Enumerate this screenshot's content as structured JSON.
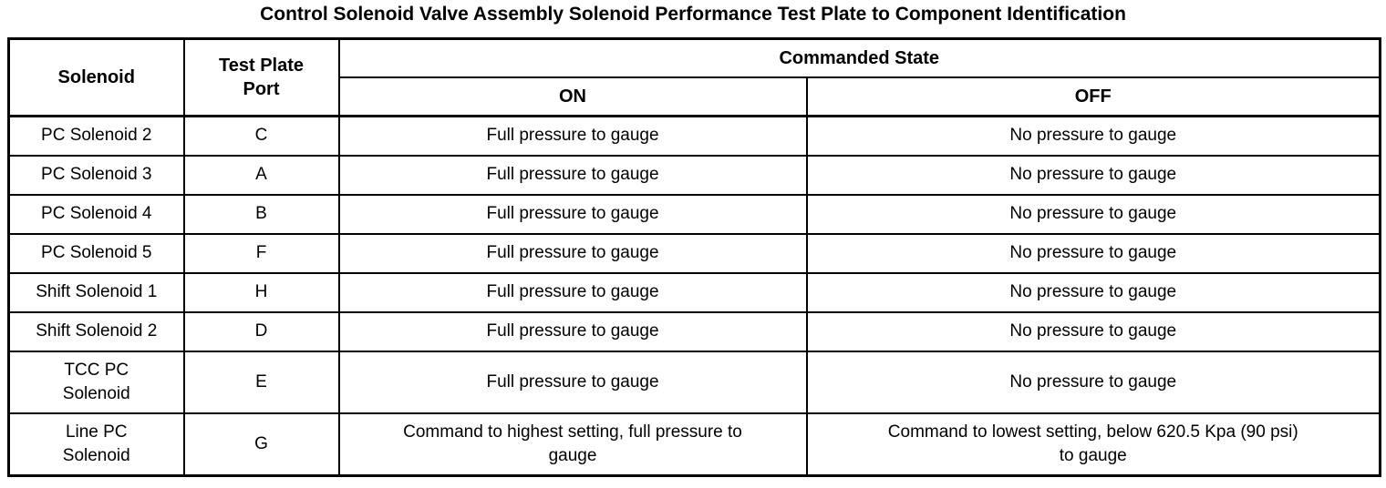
{
  "title": "Control Solenoid Valve Assembly Solenoid Performance Test Plate to Component Identification",
  "table": {
    "headers": {
      "solenoid": "Solenoid",
      "test_plate_port": "Test Plate\nPort",
      "commanded_state": "Commanded State",
      "on": "ON",
      "off": "OFF"
    },
    "rows": [
      {
        "solenoid": "PC Solenoid 2",
        "port": "C",
        "on": "Full pressure to gauge",
        "off": "No pressure to gauge"
      },
      {
        "solenoid": "PC Solenoid 3",
        "port": "A",
        "on": "Full pressure to gauge",
        "off": "No pressure to gauge"
      },
      {
        "solenoid": "PC Solenoid 4",
        "port": "B",
        "on": "Full pressure to gauge",
        "off": "No pressure to gauge"
      },
      {
        "solenoid": "PC Solenoid 5",
        "port": "F",
        "on": "Full pressure to gauge",
        "off": "No pressure to gauge"
      },
      {
        "solenoid": "Shift Solenoid 1",
        "port": "H",
        "on": "Full pressure to gauge",
        "off": "No pressure to gauge"
      },
      {
        "solenoid": "Shift Solenoid 2",
        "port": "D",
        "on": "Full pressure to gauge",
        "off": "No pressure to gauge"
      },
      {
        "solenoid": "TCC PC\nSolenoid",
        "port": "E",
        "on": "Full pressure to gauge",
        "off": "No pressure to gauge"
      },
      {
        "solenoid": "Line PC\nSolenoid",
        "port": "G",
        "on": "Command to highest setting, full pressure to\ngauge",
        "off": "Command to lowest setting, below 620.5 Kpa (90 psi)\nto gauge"
      }
    ]
  },
  "colors": {
    "text": "#000000",
    "background": "#ffffff",
    "border": "#000000"
  }
}
